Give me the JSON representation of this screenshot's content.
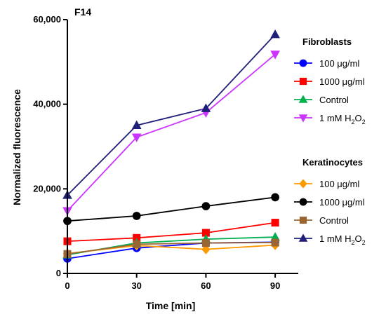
{
  "chart_data": {
    "type": "line",
    "panel_label": "F14",
    "xlabel": "Time [min]",
    "ylabel": "Normalized fluorescence",
    "x": [
      0,
      30,
      60,
      90
    ],
    "x_ticks": [
      "0",
      "30",
      "60",
      "90"
    ],
    "xlim": [
      0,
      100
    ],
    "ylim": [
      0,
      60000
    ],
    "y_ticks": [
      "0",
      "20,000",
      "40,000",
      "60,000"
    ],
    "y_tick_values": [
      0,
      20000,
      40000,
      60000
    ],
    "grid": false,
    "legend_position": "right",
    "legend_groups": [
      {
        "title": "Fibroblasts",
        "series": [
          {
            "name": "100 μg/ml",
            "label": "100 μg/ml",
            "color": "#0000ff",
            "marker": "circle",
            "values": [
              3500,
              6000,
              7200,
              7400
            ]
          },
          {
            "name": "1000 μg/ml",
            "label": "1000 μg/ml",
            "color": "#ff0000",
            "marker": "square",
            "values": [
              7600,
              8400,
              9600,
              12000
            ]
          },
          {
            "name": "Control",
            "label": "Control",
            "color": "#00b050",
            "marker": "triangle-up",
            "values": [
              4400,
              7200,
              8100,
              8600
            ]
          },
          {
            "name": "1 mM H2O2",
            "label": "1 mM H₂O₂",
            "color": "#cc33ff",
            "marker": "triangle-down",
            "values": [
              14800,
              32200,
              38000,
              51800
            ]
          }
        ]
      },
      {
        "title": "Keratinocytes",
        "series": [
          {
            "name": "100 μg/ml",
            "label": "100 μg/ml",
            "color": "#ff9900",
            "marker": "diamond",
            "values": [
              4700,
              6600,
              5700,
              6700
            ]
          },
          {
            "name": "1000 μg/ml",
            "label": "1000 μg/ml",
            "color": "#000000",
            "marker": "circle",
            "values": [
              12400,
              13600,
              15900,
              18000
            ]
          },
          {
            "name": "Control",
            "label": "Control",
            "color": "#996633",
            "marker": "square",
            "values": [
              4600,
              6900,
              7200,
              7300
            ]
          },
          {
            "name": "1 mM H2O2",
            "label": "1 mM H₂O₂",
            "color": "#1f1f7a",
            "marker": "triangle-up",
            "values": [
              18500,
              35000,
              39000,
              56500
            ]
          }
        ]
      }
    ]
  }
}
